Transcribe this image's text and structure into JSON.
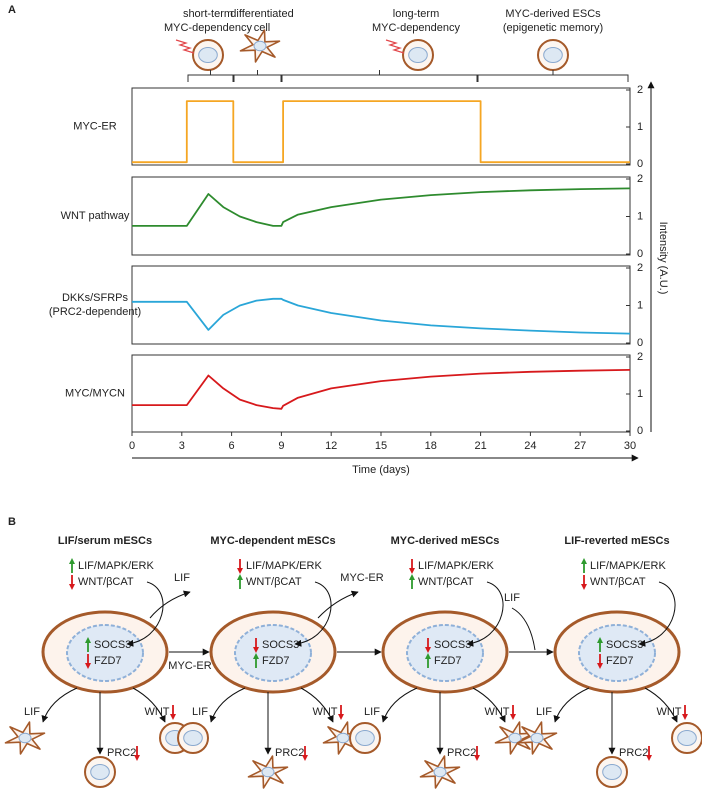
{
  "chart_data": [
    {
      "type": "line",
      "title": [
        "MYC-ER"
      ],
      "color": "#f5a623",
      "x": [
        0,
        3.3,
        3.3,
        6.1,
        6.1,
        9.1,
        9.1,
        21,
        21,
        30
      ],
      "values": [
        0.05,
        0.05,
        1.7,
        1.7,
        0.05,
        0.05,
        1.7,
        1.7,
        0.05,
        0.05
      ],
      "xlim": [
        0,
        30
      ],
      "ylim": [
        0,
        2
      ],
      "yticks": [
        0,
        1,
        2
      ]
    },
    {
      "type": "line",
      "title": [
        "WNT pathway"
      ],
      "color": "#2e8b2e",
      "x": [
        0,
        3.3,
        4.6,
        5.5,
        6.5,
        7.5,
        8.5,
        9.0,
        9.1,
        10,
        12,
        15,
        18,
        21,
        24,
        27,
        30
      ],
      "values": [
        0.75,
        0.75,
        1.6,
        1.25,
        1.0,
        0.85,
        0.75,
        0.75,
        0.85,
        1.05,
        1.25,
        1.45,
        1.57,
        1.65,
        1.7,
        1.73,
        1.75
      ],
      "xlim": [
        0,
        30
      ],
      "ylim": [
        0,
        2
      ],
      "yticks": [
        0,
        1,
        2
      ]
    },
    {
      "type": "line",
      "title": [
        "DKKs/SFRPs",
        "(PRC2-dependent)"
      ],
      "color": "#2aa6d8",
      "x": [
        0,
        3.3,
        4.6,
        5.5,
        6.5,
        7.5,
        8.5,
        9.0,
        9.1,
        10,
        12,
        15,
        18,
        21,
        24,
        27,
        30
      ],
      "values": [
        1.1,
        1.1,
        0.35,
        0.75,
        1.0,
        1.13,
        1.18,
        1.18,
        1.15,
        1.0,
        0.8,
        0.6,
        0.47,
        0.39,
        0.33,
        0.28,
        0.25
      ],
      "xlim": [
        0,
        30
      ],
      "ylim": [
        0,
        2
      ],
      "yticks": [
        0,
        1,
        2
      ]
    },
    {
      "type": "line",
      "title": [
        "MYC/MYCN"
      ],
      "color": "#d7191c",
      "x": [
        0,
        3.3,
        4.6,
        5.5,
        6.5,
        7.5,
        8.5,
        9.0,
        9.1,
        10,
        12,
        15,
        18,
        21,
        24,
        27,
        30
      ],
      "values": [
        0.7,
        0.7,
        1.5,
        1.15,
        0.85,
        0.7,
        0.62,
        0.6,
        0.68,
        0.9,
        1.15,
        1.35,
        1.47,
        1.55,
        1.6,
        1.63,
        1.65
      ],
      "xlim": [
        0,
        30
      ],
      "ylim": [
        0,
        2
      ],
      "yticks": [
        0,
        1,
        2
      ],
      "xticks": [
        0,
        3,
        6,
        9,
        12,
        15,
        18,
        21,
        24,
        27,
        30
      ],
      "xlabel": "Time (days)"
    }
  ],
  "panel_a": {
    "label": "A",
    "ylabel": "Intensity (A.U.)",
    "phases": [
      [
        "short-term",
        "MYC-dependency"
      ],
      [
        "differentiated",
        "cell"
      ],
      [
        "long-term",
        "MYC-dependency"
      ],
      [
        "MYC-derived ESCs",
        "(epigenetic memory)"
      ]
    ]
  },
  "panel_b": {
    "label": "B",
    "columns": [
      {
        "title": "LIF/serum mESCs",
        "signals": [
          "LIF/MAPK/ERK",
          "WNT/βCAT"
        ],
        "nucleus": [
          "SOCS3",
          "FZD7"
        ],
        "outputs": [
          "LIF",
          "WNT",
          "PRC2"
        ]
      },
      {
        "title": "MYC-dependent mESCs",
        "signals": [
          "LIF/MAPK/ERK",
          "WNT/βCAT"
        ],
        "nucleus": [
          "SOCS3",
          "FZD7"
        ],
        "outputs": [
          "LIF",
          "WNT",
          "PRC2"
        ]
      },
      {
        "title": "MYC-derived mESCs",
        "signals": [
          "LIF/MAPK/ERK",
          "WNT/βCAT"
        ],
        "nucleus": [
          "SOCS3",
          "FZD7"
        ],
        "outputs": [
          "LIF",
          "WNT",
          "PRC2"
        ]
      },
      {
        "title": "LIF-reverted mESCs",
        "signals": [
          "LIF/MAPK/ERK",
          "WNT/βCAT"
        ],
        "nucleus": [
          "SOCS3",
          "FZD7"
        ],
        "outputs": [
          "LIF",
          "WNT",
          "PRC2"
        ]
      }
    ],
    "transitions": [
      [
        "LIF",
        "MYC-ER"
      ],
      [
        "MYC-ER"
      ],
      [
        "LIF"
      ]
    ]
  }
}
